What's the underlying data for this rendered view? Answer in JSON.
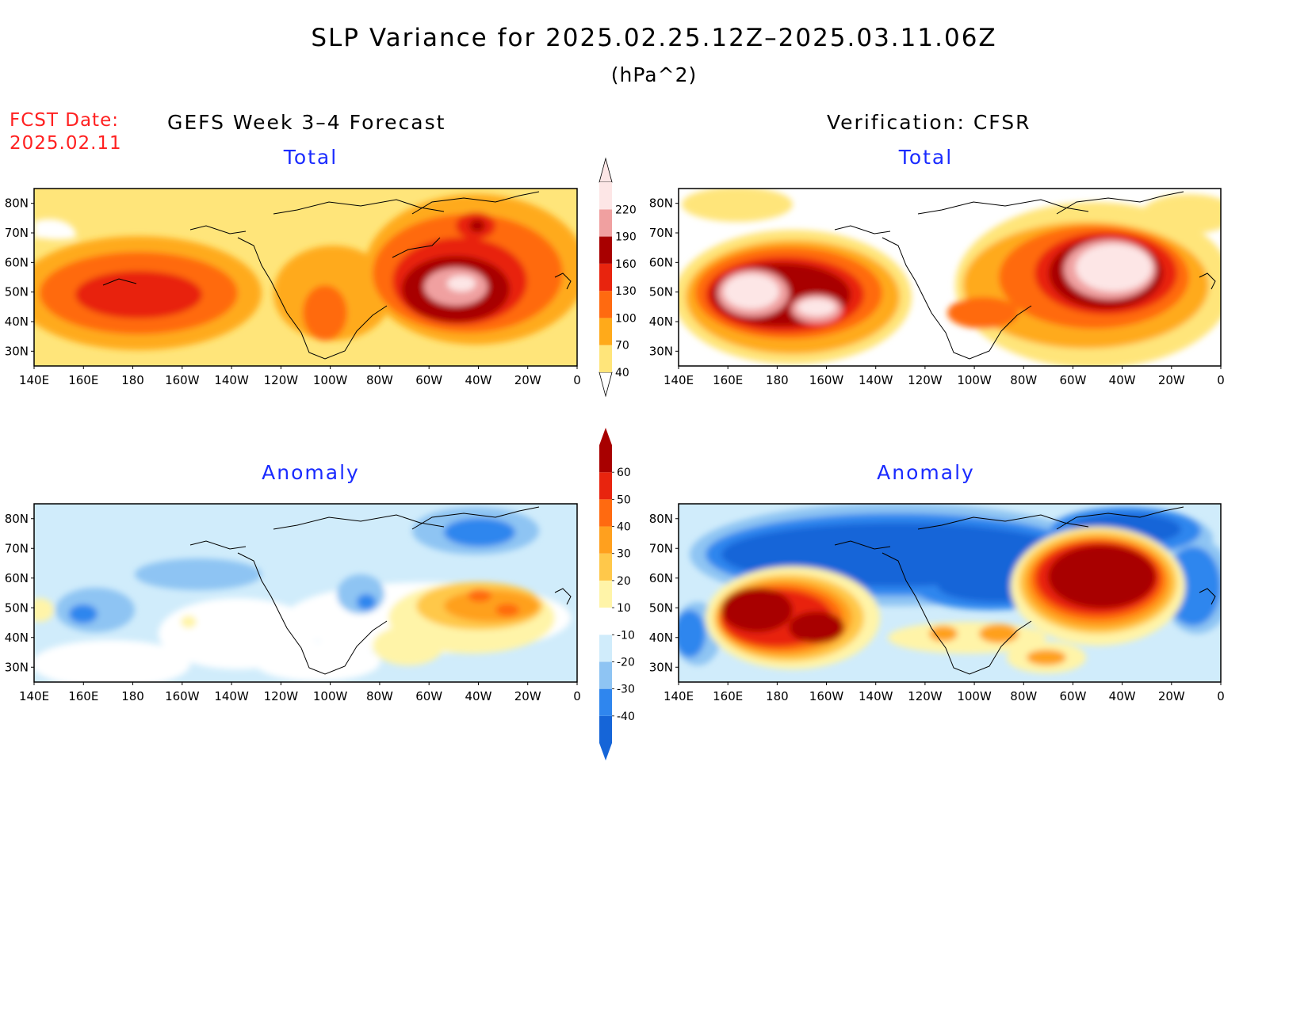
{
  "title": "SLP Variance for 2025.02.25.12Z–2025.03.11.06Z",
  "units": "(hPa^2)",
  "forecast_label": {
    "line1": "FCST Date:",
    "line2": "2025.02.11"
  },
  "columns": {
    "left": "GEFS Week 3–4 Forecast",
    "right": "Verification: CFSR"
  },
  "panels": {
    "total_label": "Total",
    "anomaly_label": "Anomaly"
  },
  "axes": {
    "lat_ticks": [
      "80N",
      "70N",
      "60N",
      "50N",
      "40N",
      "30N"
    ],
    "lon_ticks": [
      "140E",
      "160E",
      "180",
      "160W",
      "140W",
      "120W",
      "100W",
      "80W",
      "60W",
      "40W",
      "20W",
      "0"
    ]
  },
  "colorbars": {
    "total": {
      "levels": [
        "40",
        "70",
        "100",
        "130",
        "160",
        "190",
        "220"
      ],
      "colors": [
        "#ffe57a",
        "#ffaa1a",
        "#ff6a10",
        "#e8240e",
        "#a80000",
        "#f0a0a0",
        "#fde6e6"
      ]
    },
    "anomaly": {
      "levels": [
        "-40",
        "-30",
        "-20",
        "-10",
        "10",
        "20",
        "30",
        "40",
        "50",
        "60"
      ],
      "colors": [
        "#1565d8",
        "#2f86ee",
        "#8ec4f3",
        "#d0ecfb",
        "#ffffff",
        "#fff4a8",
        "#ffc84a",
        "#ffa01e",
        "#ff6a10",
        "#e8240e",
        "#a80000"
      ]
    }
  }
}
